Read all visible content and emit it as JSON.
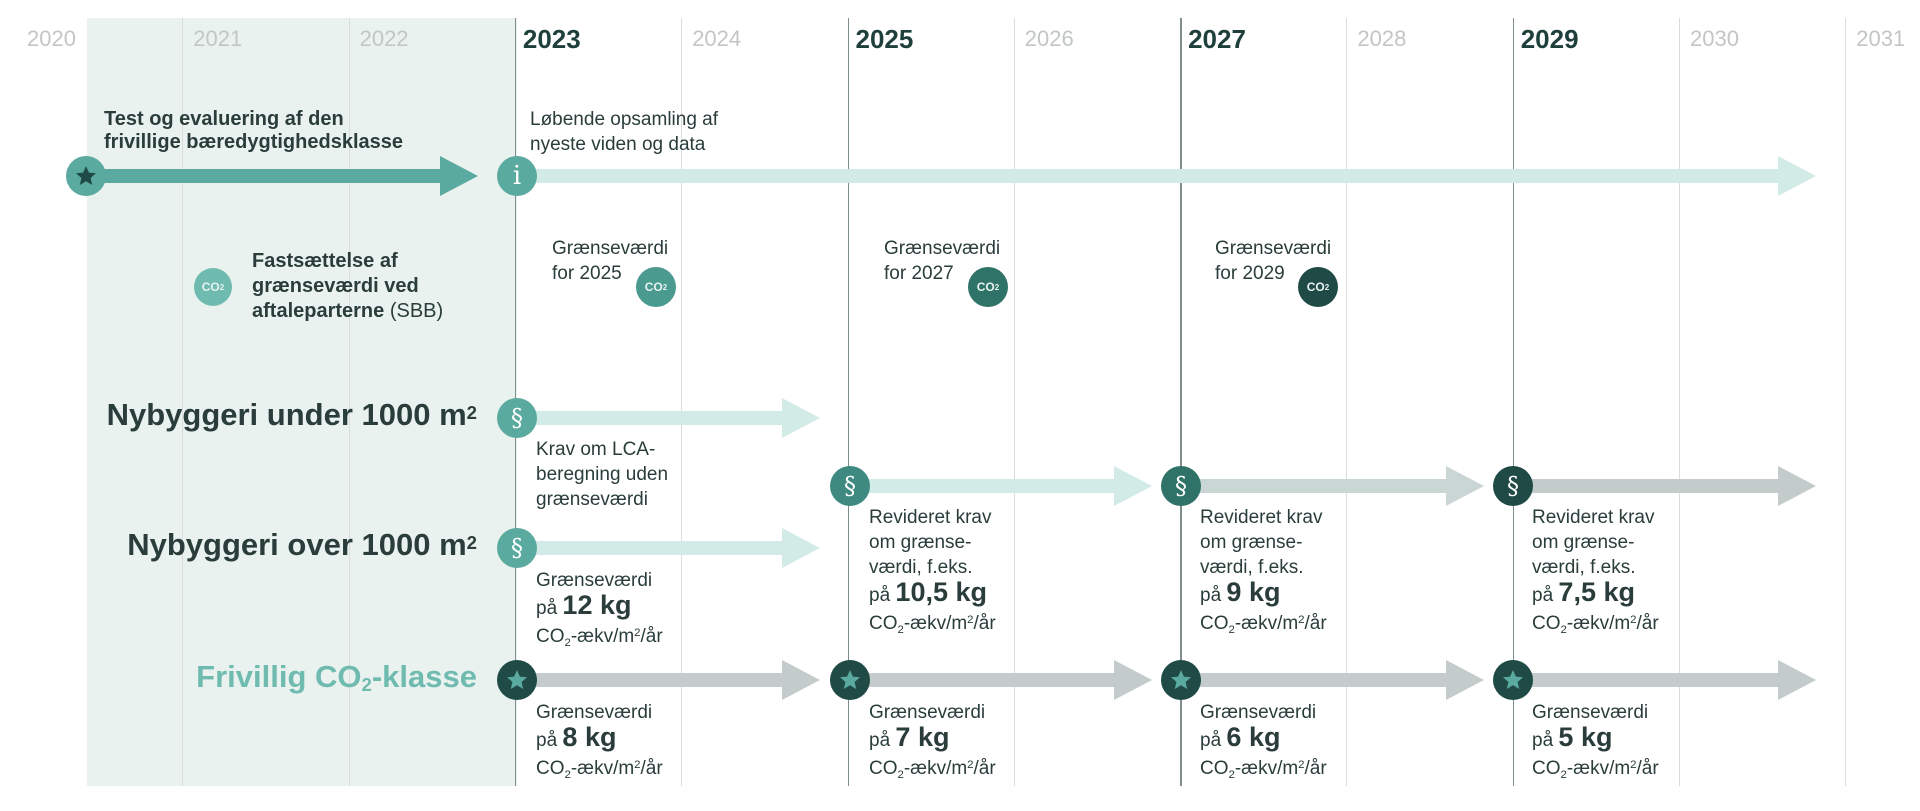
{
  "years": [
    {
      "label": "2020",
      "major": false
    },
    {
      "label": "2021",
      "major": false
    },
    {
      "label": "2022",
      "major": false
    },
    {
      "label": "2023",
      "major": true
    },
    {
      "label": "2024",
      "major": false
    },
    {
      "label": "2025",
      "major": true
    },
    {
      "label": "2026",
      "major": false
    },
    {
      "label": "2027",
      "major": true
    },
    {
      "label": "2028",
      "major": false
    },
    {
      "label": "2029",
      "major": true
    },
    {
      "label": "2030",
      "major": false
    },
    {
      "label": "2031",
      "major": false
    }
  ],
  "test_phase": {
    "line1": "Test og evaluering af den",
    "line2": "frivillige bæredygtighedsklasse"
  },
  "knowledge": {
    "line1": "Løbende opsamling af",
    "line2": "nyeste viden og data"
  },
  "co2_badge": {
    "main": "CO",
    "sub": "2"
  },
  "fastsaettelse": {
    "line1": "Fastsættelse af",
    "line2": "grænseværdi ved",
    "line3_bold": "aftaleparterne",
    "line3_rest": " (SBB)"
  },
  "limits_set": [
    {
      "line1": "Grænseværdi",
      "line2": "for 2025"
    },
    {
      "line1": "Grænseværdi",
      "line2": "for 2027"
    },
    {
      "line1": "Grænseværdi",
      "line2": "for 2029"
    }
  ],
  "rows": {
    "under": {
      "label_main": "Nybyggeri under 1000 m",
      "label_sup": "2"
    },
    "over": {
      "label_main": "Nybyggeri over 1000 m",
      "label_sup": "2"
    },
    "voluntary": {
      "label_pre": "Frivillig CO",
      "label_sub": "2",
      "label_post": "-klasse"
    }
  },
  "under_req": {
    "line1": "Krav om LCA-",
    "line2": "beregning uden",
    "line3": "grænseværdi"
  },
  "over_first": {
    "line1": "Grænseværdi",
    "pa": "på",
    "value": "12 kg"
  },
  "revised": [
    {
      "line1": "Revideret krav",
      "line2": "om grænse-",
      "line3": "værdi, f.eks.",
      "pa": "på",
      "value": "10,5 kg"
    },
    {
      "line1": "Revideret krav",
      "line2": "om grænse-",
      "line3": "værdi, f.eks.",
      "pa": "på",
      "value": "9 kg"
    },
    {
      "line1": "Revideret krav",
      "line2": "om grænse-",
      "line3": "værdi, f.eks.",
      "pa": "på",
      "value": "7,5 kg"
    }
  ],
  "voluntary_limits": [
    {
      "line1": "Grænseværdi",
      "pa": "på",
      "value": "8 kg"
    },
    {
      "line1": "Grænseværdi",
      "pa": "på",
      "value": "7 kg"
    },
    {
      "line1": "Grænseværdi",
      "pa": "på",
      "value": "6 kg"
    },
    {
      "line1": "Grænseværdi",
      "pa": "på",
      "value": "5 kg"
    }
  ],
  "unit": {
    "pre": "CO",
    "sub": "2",
    "mid": "-ækv/m",
    "sup": "2",
    "post": "/år"
  },
  "icons": {
    "star": "star-icon",
    "info": "info-icon",
    "paragraph": "paragraph-icon",
    "co2": "co2-icon"
  },
  "colors": {
    "dark": "#1f4a45",
    "mid": "#5aaa9f",
    "light": "#cce6e0",
    "grey": "#c3cccb",
    "shade": "#e9f2ef",
    "green_text": "#6fbbb0"
  }
}
